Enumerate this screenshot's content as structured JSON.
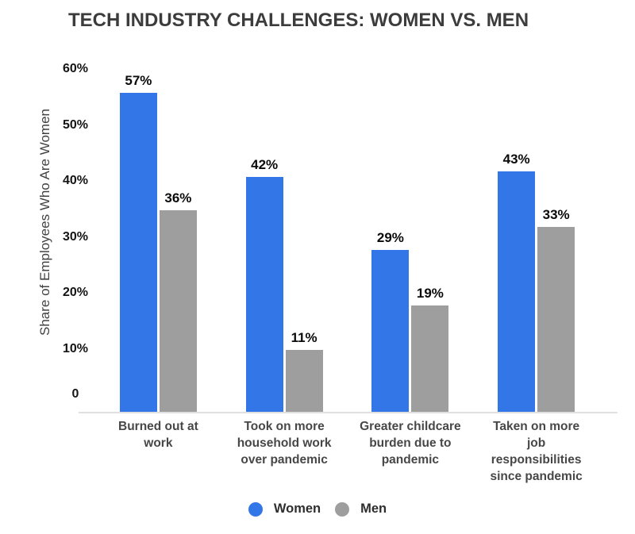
{
  "title": "TECH INDUSTRY CHALLENGES: WOMEN VS. MEN",
  "chart_data": {
    "type": "bar",
    "title": "TECH INDUSTRY CHALLENGES: WOMEN VS. MEN",
    "xlabel": "",
    "ylabel": "Share of Employees Who Are Women",
    "ymin": 0,
    "ymax": 60,
    "yticks": [
      0,
      10,
      20,
      30,
      40,
      50,
      60
    ],
    "ytick_labels": [
      "0",
      "10%",
      "20%",
      "30%",
      "40%",
      "50%",
      "60%"
    ],
    "grid": false,
    "legend_position": "bottom",
    "background_color": "#ffffff",
    "axis_line_color": "#e0e0e0",
    "categories": [
      "Burned out at work",
      "Took on more household work over pandemic",
      "Greater childcare burden due to pandemic",
      "Taken on more job responsibilities since pandemic"
    ],
    "category_lines": [
      [
        "Burned out at",
        "work"
      ],
      [
        "Took on more",
        "household work",
        "over pandemic"
      ],
      [
        "Greater childcare",
        "burden due to",
        "pandemic"
      ],
      [
        "Taken on more",
        "job",
        "responsibilities",
        "since pandemic"
      ]
    ],
    "series": [
      {
        "name": "Women",
        "color": "#3376e8",
        "values": [
          57,
          42,
          29,
          43
        ],
        "labels": [
          "57%",
          "42%",
          "29%",
          "43%"
        ]
      },
      {
        "name": "Men",
        "color": "#9e9e9e",
        "values": [
          36,
          11,
          19,
          33
        ],
        "labels": [
          "36%",
          "11%",
          "19%",
          "33%"
        ]
      }
    ]
  }
}
